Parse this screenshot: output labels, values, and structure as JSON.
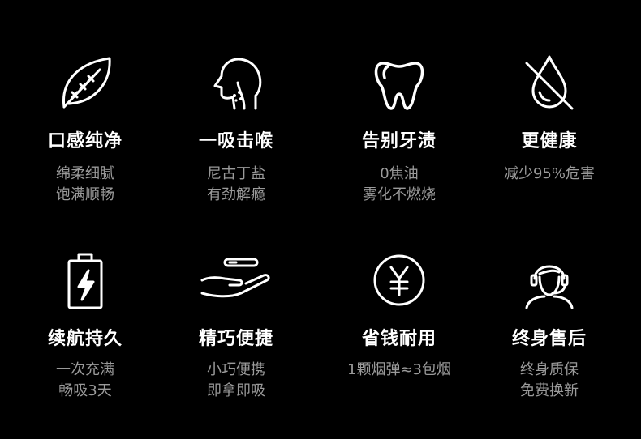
{
  "features": [
    {
      "icon": "leaf-icon",
      "title": "口感纯净",
      "sub1": "绵柔细腻",
      "sub2": "饱满顺畅"
    },
    {
      "icon": "head-throat-icon",
      "title": "一吸击喉",
      "sub1": "尼古丁盐",
      "sub2": "有劲解瘾"
    },
    {
      "icon": "tooth-icon",
      "title": "告别牙渍",
      "sub1": "0焦油",
      "sub2": "雾化不燃烧"
    },
    {
      "icon": "no-drop-icon",
      "title": "更健康",
      "sub1": "减少95%危害",
      "sub2": ""
    },
    {
      "icon": "battery-icon",
      "title": "续航持久",
      "sub1": "一次充满",
      "sub2": "畅吸3天"
    },
    {
      "icon": "hand-device-icon",
      "title": "精巧便捷",
      "sub1": "小巧便携",
      "sub2": "即拿即吸"
    },
    {
      "icon": "yen-coin-icon",
      "title": "省钱耐用",
      "sub1": "1颗烟弹≈3包烟",
      "sub2": ""
    },
    {
      "icon": "headset-service-icon",
      "title": "终身售后",
      "sub1": "终身质保",
      "sub2": "免费换新"
    }
  ],
  "colors": {
    "background": "#000000",
    "title": "#ffffff",
    "subtitle": "#9a9a9a",
    "icon": "#ffffff"
  }
}
